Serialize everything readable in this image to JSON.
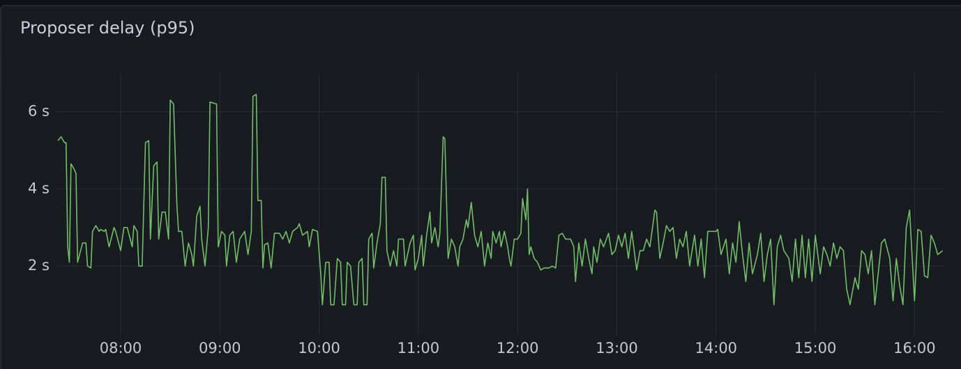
{
  "chart_data": {
    "type": "line",
    "title": "Proposer delay (p95)",
    "color": "#73bf69",
    "grid": true,
    "ylim": [
      0.2,
      7
    ],
    "yticks": [
      {
        "value": 2,
        "label": "2 s"
      },
      {
        "value": 4,
        "label": "4 s"
      },
      {
        "value": 6,
        "label": "6 s"
      }
    ],
    "xlim": [
      "07:21",
      "16:17"
    ],
    "xticks": [
      "08:00",
      "09:00",
      "10:00",
      "11:00",
      "12:00",
      "13:00",
      "14:00",
      "15:00",
      "16:00"
    ],
    "x": [
      "07:22",
      "07:23",
      "07:24",
      "07:26",
      "07:27",
      "07:28",
      "07:29",
      "07:30",
      "07:32",
      "07:33",
      "07:34",
      "07:37",
      "07:39",
      "07:40",
      "07:42",
      "07:43",
      "07:45",
      "07:47",
      "07:48",
      "07:50",
      "07:51",
      "07:53",
      "07:56",
      "07:57",
      "08:00",
      "08:02",
      "08:04",
      "08:07",
      "08:08",
      "08:10",
      "08:11",
      "08:13",
      "08:15",
      "08:17",
      "08:18",
      "08:20",
      "08:22",
      "08:23",
      "08:25",
      "08:27",
      "08:29",
      "08:30",
      "08:32",
      "08:34",
      "08:35",
      "08:37",
      "08:39",
      "08:41",
      "08:43",
      "08:44",
      "08:46",
      "08:48",
      "08:49",
      "08:51",
      "08:53",
      "08:54",
      "08:58",
      "08:59",
      "09:01",
      "09:03",
      "09:04",
      "09:06",
      "09:08",
      "09:10",
      "09:12",
      "09:15",
      "09:17",
      "09:19",
      "09:20",
      "09:22",
      "09:23",
      "09:25",
      "09:26",
      "09:27",
      "09:29",
      "09:31",
      "09:33",
      "09:36",
      "09:38",
      "09:40",
      "09:42",
      "09:44",
      "09:47",
      "09:48",
      "09:50",
      "09:53",
      "09:54",
      "09:56",
      "09:59",
      "10:01",
      "10:02",
      "10:04",
      "10:06",
      "10:07",
      "10:09",
      "10:11",
      "10:13",
      "10:14",
      "10:16",
      "10:17",
      "10:19",
      "10:21",
      "10:23",
      "10:24",
      "10:26",
      "10:27",
      "10:29",
      "10:30",
      "10:32",
      "10:33",
      "10:35",
      "10:37",
      "10:38",
      "10:40",
      "10:41",
      "10:43",
      "10:45",
      "10:47",
      "10:48",
      "10:51",
      "10:52",
      "10:55",
      "10:57",
      "10:58",
      "11:00",
      "11:02",
      "11:03",
      "11:05",
      "11:07",
      "11:08",
      "11:10",
      "11:12",
      "11:13",
      "11:15",
      "11:16",
      "11:18",
      "11:20",
      "11:22",
      "11:24",
      "11:25",
      "11:27",
      "11:29",
      "11:30",
      "11:32",
      "11:34",
      "11:36",
      "11:38",
      "11:40",
      "11:42",
      "11:44",
      "11:45",
      "11:47",
      "11:49",
      "11:50",
      "11:52",
      "11:54",
      "11:55",
      "11:56",
      "11:58",
      "12:00",
      "12:02",
      "12:03",
      "12:05",
      "12:06",
      "12:07",
      "12:08",
      "12:10",
      "12:12",
      "12:14",
      "12:16",
      "12:19",
      "12:21",
      "12:23",
      "12:25",
      "12:27",
      "12:29",
      "12:32",
      "12:34",
      "12:35",
      "12:37",
      "12:39",
      "12:41",
      "12:43",
      "12:45",
      "12:46",
      "12:48",
      "12:50",
      "12:52",
      "12:55",
      "12:57",
      "12:59",
      "13:01",
      "13:03",
      "13:05",
      "13:07",
      "13:09",
      "13:12",
      "13:14",
      "13:16",
      "13:18",
      "13:20",
      "13:23",
      "13:24",
      "13:26",
      "13:28",
      "13:30",
      "13:32",
      "13:34",
      "13:36",
      "13:38",
      "13:40",
      "13:42",
      "13:44",
      "13:47",
      "13:49",
      "13:51",
      "13:53",
      "13:55",
      "13:57",
      "14:00",
      "14:01",
      "14:03",
      "14:06",
      "14:08",
      "14:10",
      "14:12",
      "14:14",
      "14:16",
      "14:18",
      "14:20",
      "14:22",
      "14:25",
      "14:27",
      "14:29",
      "14:31",
      "14:33",
      "14:35",
      "14:37",
      "14:39",
      "14:41",
      "14:44",
      "14:46",
      "14:48",
      "14:50",
      "14:52",
      "14:54",
      "14:56",
      "14:58",
      "15:00",
      "15:03",
      "15:05",
      "15:07",
      "15:09",
      "15:11",
      "15:13",
      "15:15",
      "15:17",
      "15:19",
      "15:21",
      "15:24",
      "15:26",
      "15:28",
      "15:30",
      "15:32",
      "15:34",
      "15:36",
      "15:38",
      "15:40",
      "15:42",
      "15:45",
      "15:47",
      "15:49",
      "15:51",
      "15:53",
      "15:55",
      "15:57",
      "16:00",
      "16:02",
      "16:04",
      "16:06",
      "16:08",
      "16:10",
      "16:12",
      "16:14",
      "16:17"
    ],
    "values": [
      5.25,
      5.3,
      5.35,
      5.2,
      5.2,
      2.5,
      2.1,
      4.65,
      4.5,
      4.4,
      2.1,
      2.6,
      2.6,
      2.0,
      1.95,
      2.9,
      3.05,
      2.9,
      2.95,
      2.9,
      2.95,
      2.5,
      3.0,
      2.9,
      2.4,
      3.0,
      3.0,
      2.5,
      3.05,
      2.9,
      2.0,
      2.0,
      5.2,
      5.25,
      2.7,
      4.6,
      4.7,
      2.7,
      3.4,
      3.4,
      2.7,
      6.3,
      6.2,
      3.6,
      2.9,
      2.9,
      2.0,
      2.6,
      2.3,
      2.0,
      3.3,
      3.55,
      2.7,
      2.0,
      3.0,
      6.25,
      6.2,
      2.5,
      2.9,
      2.8,
      2.0,
      2.8,
      2.9,
      2.1,
      2.7,
      2.9,
      2.3,
      2.9,
      6.4,
      6.45,
      3.7,
      3.7,
      1.95,
      2.55,
      2.6,
      1.95,
      2.85,
      2.85,
      2.7,
      2.9,
      2.6,
      2.9,
      3.0,
      3.1,
      2.8,
      2.9,
      2.5,
      2.95,
      2.9,
      1.8,
      1.0,
      2.1,
      2.1,
      1.0,
      1.0,
      2.2,
      2.1,
      1.0,
      1.0,
      2.1,
      2.0,
      1.0,
      1.0,
      2.1,
      2.2,
      1.0,
      1.0,
      2.7,
      2.85,
      1.95,
      2.6,
      3.1,
      4.3,
      4.3,
      2.4,
      2.0,
      2.4,
      2.0,
      2.7,
      2.7,
      2.0,
      2.6,
      2.8,
      1.9,
      2.2,
      2.8,
      2.0,
      2.8,
      3.4,
      2.6,
      3.0,
      2.5,
      2.85,
      5.35,
      5.3,
      2.2,
      2.7,
      2.5,
      2.0,
      2.5,
      2.7,
      3.2,
      3.0,
      3.65,
      2.8,
      2.5,
      2.9,
      2.0,
      2.6,
      2.2,
      2.9,
      2.6,
      2.9,
      2.5,
      2.9,
      2.5,
      2.2,
      2.0,
      2.7,
      2.7,
      2.85,
      3.75,
      3.2,
      4.0,
      2.3,
      2.5,
      2.2,
      2.1,
      1.9,
      1.95,
      1.95,
      2.0,
      1.95,
      2.8,
      2.85,
      2.7,
      2.7,
      2.5,
      1.6,
      2.6,
      2.0,
      2.7,
      2.2,
      1.8,
      2.5,
      2.1,
      2.7,
      2.5,
      2.85,
      2.3,
      2.4,
      2.8,
      2.5,
      2.85,
      2.2,
      2.9,
      1.9,
      2.4,
      2.4,
      2.7,
      2.5,
      3.45,
      3.4,
      2.2,
      2.6,
      3.05,
      2.9,
      3.0,
      2.2,
      2.7,
      2.5,
      2.9,
      2.0,
      2.8,
      2.0,
      2.7,
      1.7,
      2.9,
      2.9,
      2.9,
      2.95,
      2.3,
      2.7,
      1.8,
      2.6,
      2.1,
      3.15,
      2.3,
      1.6,
      2.6,
      1.8,
      2.3,
      2.85,
      1.6,
      2.3,
      2.7,
      1.0,
      2.5,
      2.8,
      2.4,
      2.2,
      1.6,
      2.7,
      1.7,
      2.8,
      1.7,
      2.7,
      1.6,
      2.8,
      1.8,
      2.5,
      2.3,
      2.0,
      2.6,
      2.2,
      2.5,
      2.4,
      1.4,
      1.0,
      1.7,
      1.4,
      2.4,
      2.3,
      1.8,
      2.4,
      1.0,
      1.8,
      2.6,
      2.7,
      2.2,
      1.1,
      2.2,
      1.5,
      1.0,
      3.0,
      3.45,
      1.1,
      2.95,
      2.9,
      1.75,
      1.7,
      2.8,
      2.6,
      2.3,
      2.4
    ]
  }
}
